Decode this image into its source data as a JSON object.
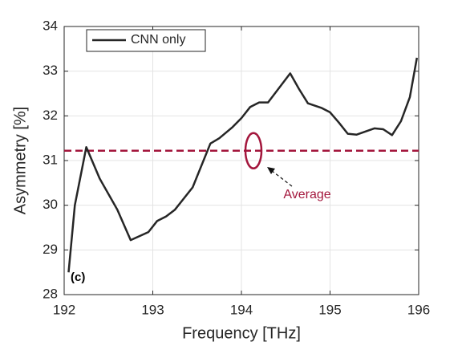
{
  "chart_data": {
    "type": "line",
    "xlabel": "Frequency [THz]",
    "ylabel": "Asymmetry [%]",
    "annotation": "(c)",
    "x": [
      192.05,
      192.12,
      192.25,
      192.4,
      192.6,
      192.75,
      192.95,
      193.05,
      193.15,
      193.25,
      193.45,
      193.65,
      193.75,
      193.9,
      194.0,
      194.1,
      194.2,
      194.3,
      194.55,
      194.65,
      194.75,
      194.9,
      195.0,
      195.1,
      195.2,
      195.3,
      195.4,
      195.5,
      195.6,
      195.7,
      195.8,
      195.9,
      195.98
    ],
    "series": [
      {
        "name": "CNN only",
        "color": "#262626",
        "values": [
          28.5,
          30.0,
          31.3,
          30.6,
          29.9,
          29.22,
          29.4,
          29.65,
          29.75,
          29.9,
          30.4,
          31.38,
          31.5,
          31.75,
          31.95,
          32.2,
          32.3,
          32.3,
          32.95,
          32.6,
          32.28,
          32.18,
          32.08,
          31.85,
          31.6,
          31.58,
          31.65,
          31.72,
          31.7,
          31.57,
          31.88,
          32.42,
          33.3
        ]
      }
    ],
    "reference_line": {
      "value": 31.22,
      "label": "Average",
      "color": "#a3163c"
    },
    "xlim": [
      192,
      196
    ],
    "xticks": [
      192,
      193,
      194,
      195,
      196
    ],
    "ylim": [
      28,
      34
    ],
    "yticks": [
      28,
      29,
      30,
      31,
      32,
      33,
      34
    ],
    "grid": true,
    "legend": "upper left"
  }
}
